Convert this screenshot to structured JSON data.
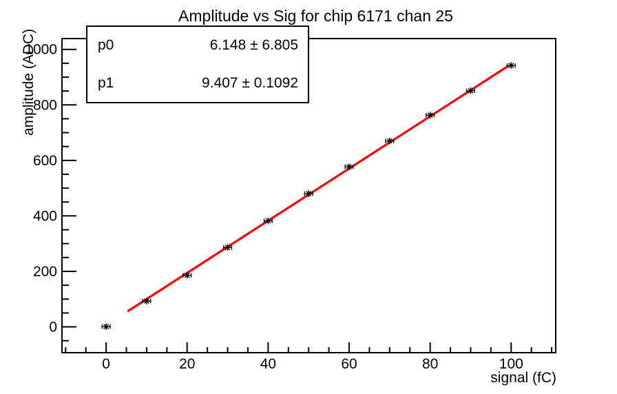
{
  "canvas": {
    "background": "#ffffff"
  },
  "chart": {
    "title": "Amplitude vs Sig for chip 6171 chan 25",
    "x_axis_title": "signal (fC)",
    "y_axis_title": "amplitude (ADC)",
    "stats_box": {
      "rows": [
        {
          "label": "p0",
          "value": "6.148 ± 6.805"
        },
        {
          "label": "p1",
          "value": "9.407 ± 0.1092"
        }
      ]
    }
  },
  "chart_data": {
    "type": "scatter",
    "title": "Amplitude vs Sig for chip 6171 chan 25",
    "xlabel": "signal (fC)",
    "ylabel": "amplitude (ADC)",
    "x": [
      0,
      10,
      20,
      30,
      40,
      50,
      60,
      70,
      80,
      90,
      100
    ],
    "y": [
      1,
      93,
      186,
      286,
      382,
      480,
      577,
      670,
      763,
      851,
      942
    ],
    "x_error": 1.0,
    "marker": "asterisk",
    "marker_color": "#000000",
    "fit": {
      "model": "p0 + p1*x",
      "p0": 6.148,
      "p0_err": 6.805,
      "p1": 9.407,
      "p1_err": 0.1092,
      "range": [
        5.5,
        99.2
      ],
      "color": "#ff0000"
    },
    "xlim": [
      -10.9,
      111.0
    ],
    "ylim": [
      -93,
      1039
    ],
    "x_major_ticks": [
      0,
      20,
      40,
      60,
      80,
      100
    ],
    "x_minor_step": 5,
    "y_major_ticks": [
      0,
      200,
      400,
      600,
      800,
      1000
    ],
    "y_minor_step": 50,
    "grid": false,
    "legend": "none",
    "frame_color": "#000000",
    "background": "#ffffff"
  }
}
